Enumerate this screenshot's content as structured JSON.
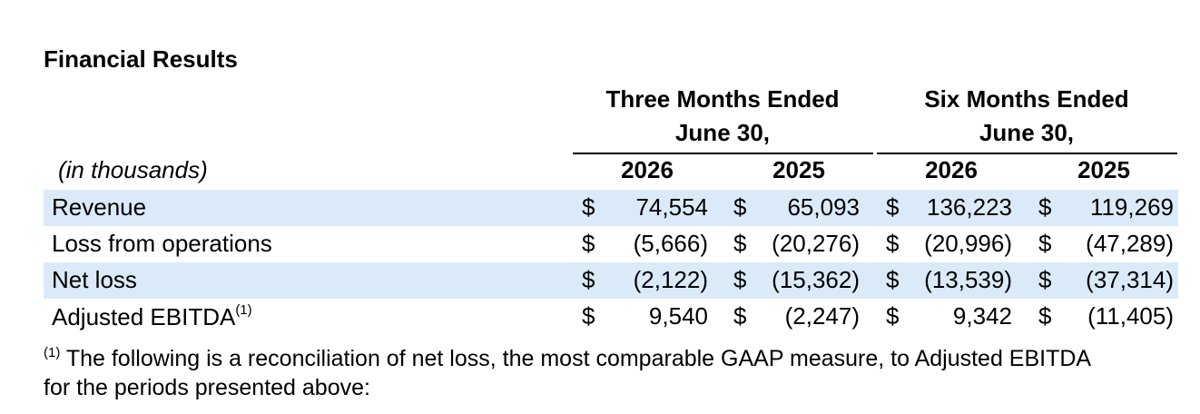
{
  "title": "Financial Results",
  "groups": {
    "three_months": [
      "Three Months Ended",
      "June 30,"
    ],
    "six_months": [
      "Six Months Ended",
      "June 30,"
    ]
  },
  "unit_label": "(in thousands)",
  "years": [
    "2026",
    "2025",
    "2026",
    "2025"
  ],
  "currency_symbol": "$",
  "rows": [
    {
      "label": "Revenue",
      "footnote": "",
      "values": [
        "74,554",
        "65,093",
        "136,223",
        "119,269"
      ]
    },
    {
      "label": "Loss from operations",
      "footnote": "",
      "values": [
        "(5,666)",
        "(20,276)",
        "(20,996)",
        "(47,289)"
      ]
    },
    {
      "label": "Net loss",
      "footnote": "",
      "values": [
        "(2,122)",
        "(15,362)",
        "(13,539)",
        "(37,314)"
      ]
    },
    {
      "label": "Adjusted EBITDA",
      "footnote": "(1)",
      "values": [
        "9,540",
        "(2,247)",
        "9,342",
        "(11,405)"
      ]
    }
  ],
  "footnote": {
    "marker": "(1)",
    "line1": " The following is a reconciliation of net loss, the most comparable GAAP measure, to Adjusted EBITDA",
    "line2": "for the periods presented above:"
  },
  "colors": {
    "row_shade": "#dbeaf8",
    "text": "#000000"
  }
}
